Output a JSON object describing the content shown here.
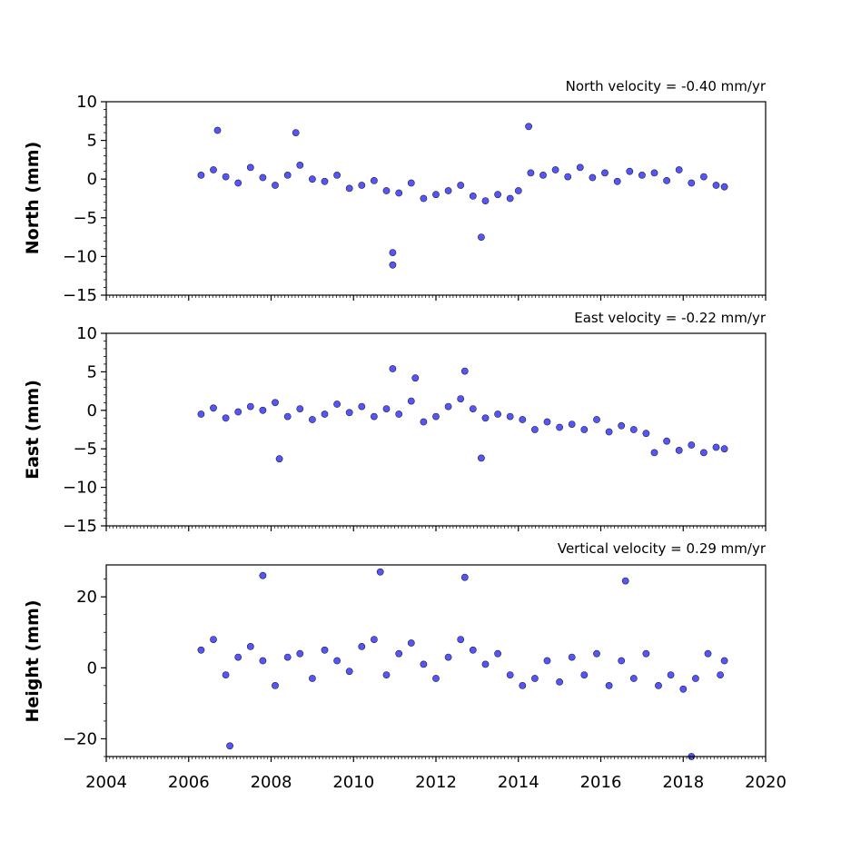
{
  "chart_data": [
    {
      "type": "scatter",
      "name": "north",
      "velocity_text": "North velocity = -0.40 mm/yr",
      "ylabel": "North (mm)",
      "xlim": [
        2004,
        2020
      ],
      "ylim": [
        -15,
        10
      ],
      "yticks": [
        10,
        5,
        0,
        -5,
        -10,
        -15
      ],
      "ytick_labels": [
        "10",
        "5",
        "0",
        "−5",
        "−10",
        "−15"
      ],
      "marker_color": "#5555ff",
      "x": [
        2006.3,
        2006.6,
        2006.9,
        2007.2,
        2007.5,
        2007.8,
        2008.1,
        2008.4,
        2008.7,
        2009.0,
        2009.3,
        2009.6,
        2009.9,
        2010.2,
        2010.5,
        2010.8,
        2011.1,
        2011.4,
        2011.7,
        2012.0,
        2012.3,
        2012.6,
        2012.9,
        2013.2,
        2013.5,
        2013.8,
        2014.0,
        2014.3,
        2014.6,
        2014.9,
        2015.2,
        2015.5,
        2015.8,
        2016.1,
        2016.4,
        2016.7,
        2017.0,
        2017.3,
        2017.6,
        2017.9,
        2018.2,
        2018.5,
        2018.8,
        2019.0,
        2006.7,
        2008.6,
        2010.95,
        2010.95,
        2013.1,
        2014.25
      ],
      "y": [
        0.5,
        1.2,
        0.3,
        -0.5,
        1.5,
        0.2,
        -0.8,
        0.5,
        1.8,
        0.0,
        -0.3,
        0.5,
        -1.2,
        -0.8,
        -0.2,
        -1.5,
        -1.8,
        -0.5,
        -2.5,
        -2.0,
        -1.5,
        -0.8,
        -2.2,
        -2.8,
        -2.0,
        -2.5,
        -1.5,
        0.8,
        0.5,
        1.2,
        0.3,
        1.5,
        0.2,
        0.8,
        -0.3,
        1.0,
        0.5,
        0.8,
        -0.2,
        1.2,
        -0.5,
        0.3,
        -0.8,
        -1.0,
        6.3,
        6.0,
        -9.5,
        -11.1,
        -7.5,
        6.8
      ]
    },
    {
      "type": "scatter",
      "name": "east",
      "velocity_text": "East velocity = -0.22 mm/yr",
      "ylabel": "East (mm)",
      "xlim": [
        2004,
        2020
      ],
      "ylim": [
        -15,
        10
      ],
      "yticks": [
        10,
        5,
        0,
        -5,
        -10,
        -15
      ],
      "ytick_labels": [
        "10",
        "5",
        "0",
        "−5",
        "−10",
        "−15"
      ],
      "marker_color": "#5555ff",
      "x": [
        2006.3,
        2006.6,
        2006.9,
        2007.2,
        2007.5,
        2007.8,
        2008.1,
        2008.4,
        2008.7,
        2009.0,
        2009.3,
        2009.6,
        2009.9,
        2010.2,
        2010.5,
        2010.8,
        2011.1,
        2011.4,
        2011.7,
        2012.0,
        2012.3,
        2012.6,
        2012.9,
        2013.2,
        2013.5,
        2013.8,
        2014.1,
        2014.4,
        2014.7,
        2015.0,
        2015.3,
        2015.6,
        2015.9,
        2016.2,
        2016.5,
        2016.8,
        2017.1,
        2017.3,
        2017.6,
        2017.9,
        2018.2,
        2018.5,
        2018.8,
        2019.0,
        2010.95,
        2011.5,
        2012.7,
        2013.1,
        2008.2
      ],
      "y": [
        -0.5,
        0.3,
        -1.0,
        -0.2,
        0.5,
        0.0,
        1.0,
        -0.8,
        0.2,
        -1.2,
        -0.5,
        0.8,
        -0.3,
        0.5,
        -0.8,
        0.2,
        -0.5,
        1.2,
        -1.5,
        -0.8,
        0.5,
        1.5,
        0.2,
        -1.0,
        -0.5,
        -0.8,
        -1.2,
        -2.5,
        -1.5,
        -2.2,
        -1.8,
        -2.5,
        -1.2,
        -2.8,
        -2.0,
        -2.5,
        -3.0,
        -5.5,
        -4.0,
        -5.2,
        -4.5,
        -5.5,
        -4.8,
        -5.0,
        5.4,
        4.2,
        5.1,
        -6.2,
        -6.3
      ]
    },
    {
      "type": "scatter",
      "name": "height",
      "velocity_text": "Vertical velocity = 0.29 mm/yr",
      "ylabel": "Height (mm)",
      "xlim": [
        2004,
        2020
      ],
      "ylim": [
        -25,
        29
      ],
      "yticks": [
        20,
        0,
        -20
      ],
      "ytick_labels": [
        "20",
        "0",
        "−20"
      ],
      "marker_color": "#5555ff",
      "x": [
        2006.3,
        2006.6,
        2006.9,
        2007.2,
        2007.5,
        2007.8,
        2008.1,
        2008.4,
        2008.7,
        2009.0,
        2009.3,
        2009.6,
        2009.9,
        2010.2,
        2010.5,
        2010.8,
        2011.1,
        2011.4,
        2011.7,
        2012.0,
        2012.3,
        2012.6,
        2012.9,
        2013.2,
        2013.5,
        2013.8,
        2014.1,
        2014.4,
        2014.7,
        2015.0,
        2015.3,
        2015.6,
        2015.9,
        2016.2,
        2016.5,
        2016.8,
        2017.1,
        2017.4,
        2017.7,
        2018.0,
        2018.3,
        2018.6,
        2018.9,
        2019.0,
        2007.8,
        2010.65,
        2012.7,
        2016.6,
        2018.2,
        2007.0
      ],
      "y": [
        5.0,
        8.0,
        -2.0,
        3.0,
        6.0,
        2.0,
        -5.0,
        3.0,
        4.0,
        -3.0,
        5.0,
        2.0,
        -1.0,
        6.0,
        8.0,
        -2.0,
        4.0,
        7.0,
        1.0,
        -3.0,
        3.0,
        8.0,
        5.0,
        1.0,
        4.0,
        -2.0,
        -5.0,
        -3.0,
        2.0,
        -4.0,
        3.0,
        -2.0,
        4.0,
        -5.0,
        2.0,
        -3.0,
        4.0,
        -5.0,
        -2.0,
        -6.0,
        -3.0,
        4.0,
        -2.0,
        2.0,
        26.0,
        27.0,
        25.5,
        24.5,
        -25.0,
        -22.0
      ]
    }
  ],
  "x_axis": {
    "ticks": [
      2004,
      2006,
      2008,
      2010,
      2012,
      2014,
      2016,
      2018,
      2020
    ],
    "tick_labels": [
      "2004",
      "2006",
      "2008",
      "2010",
      "2012",
      "2014",
      "2016",
      "2018",
      "2020"
    ]
  }
}
